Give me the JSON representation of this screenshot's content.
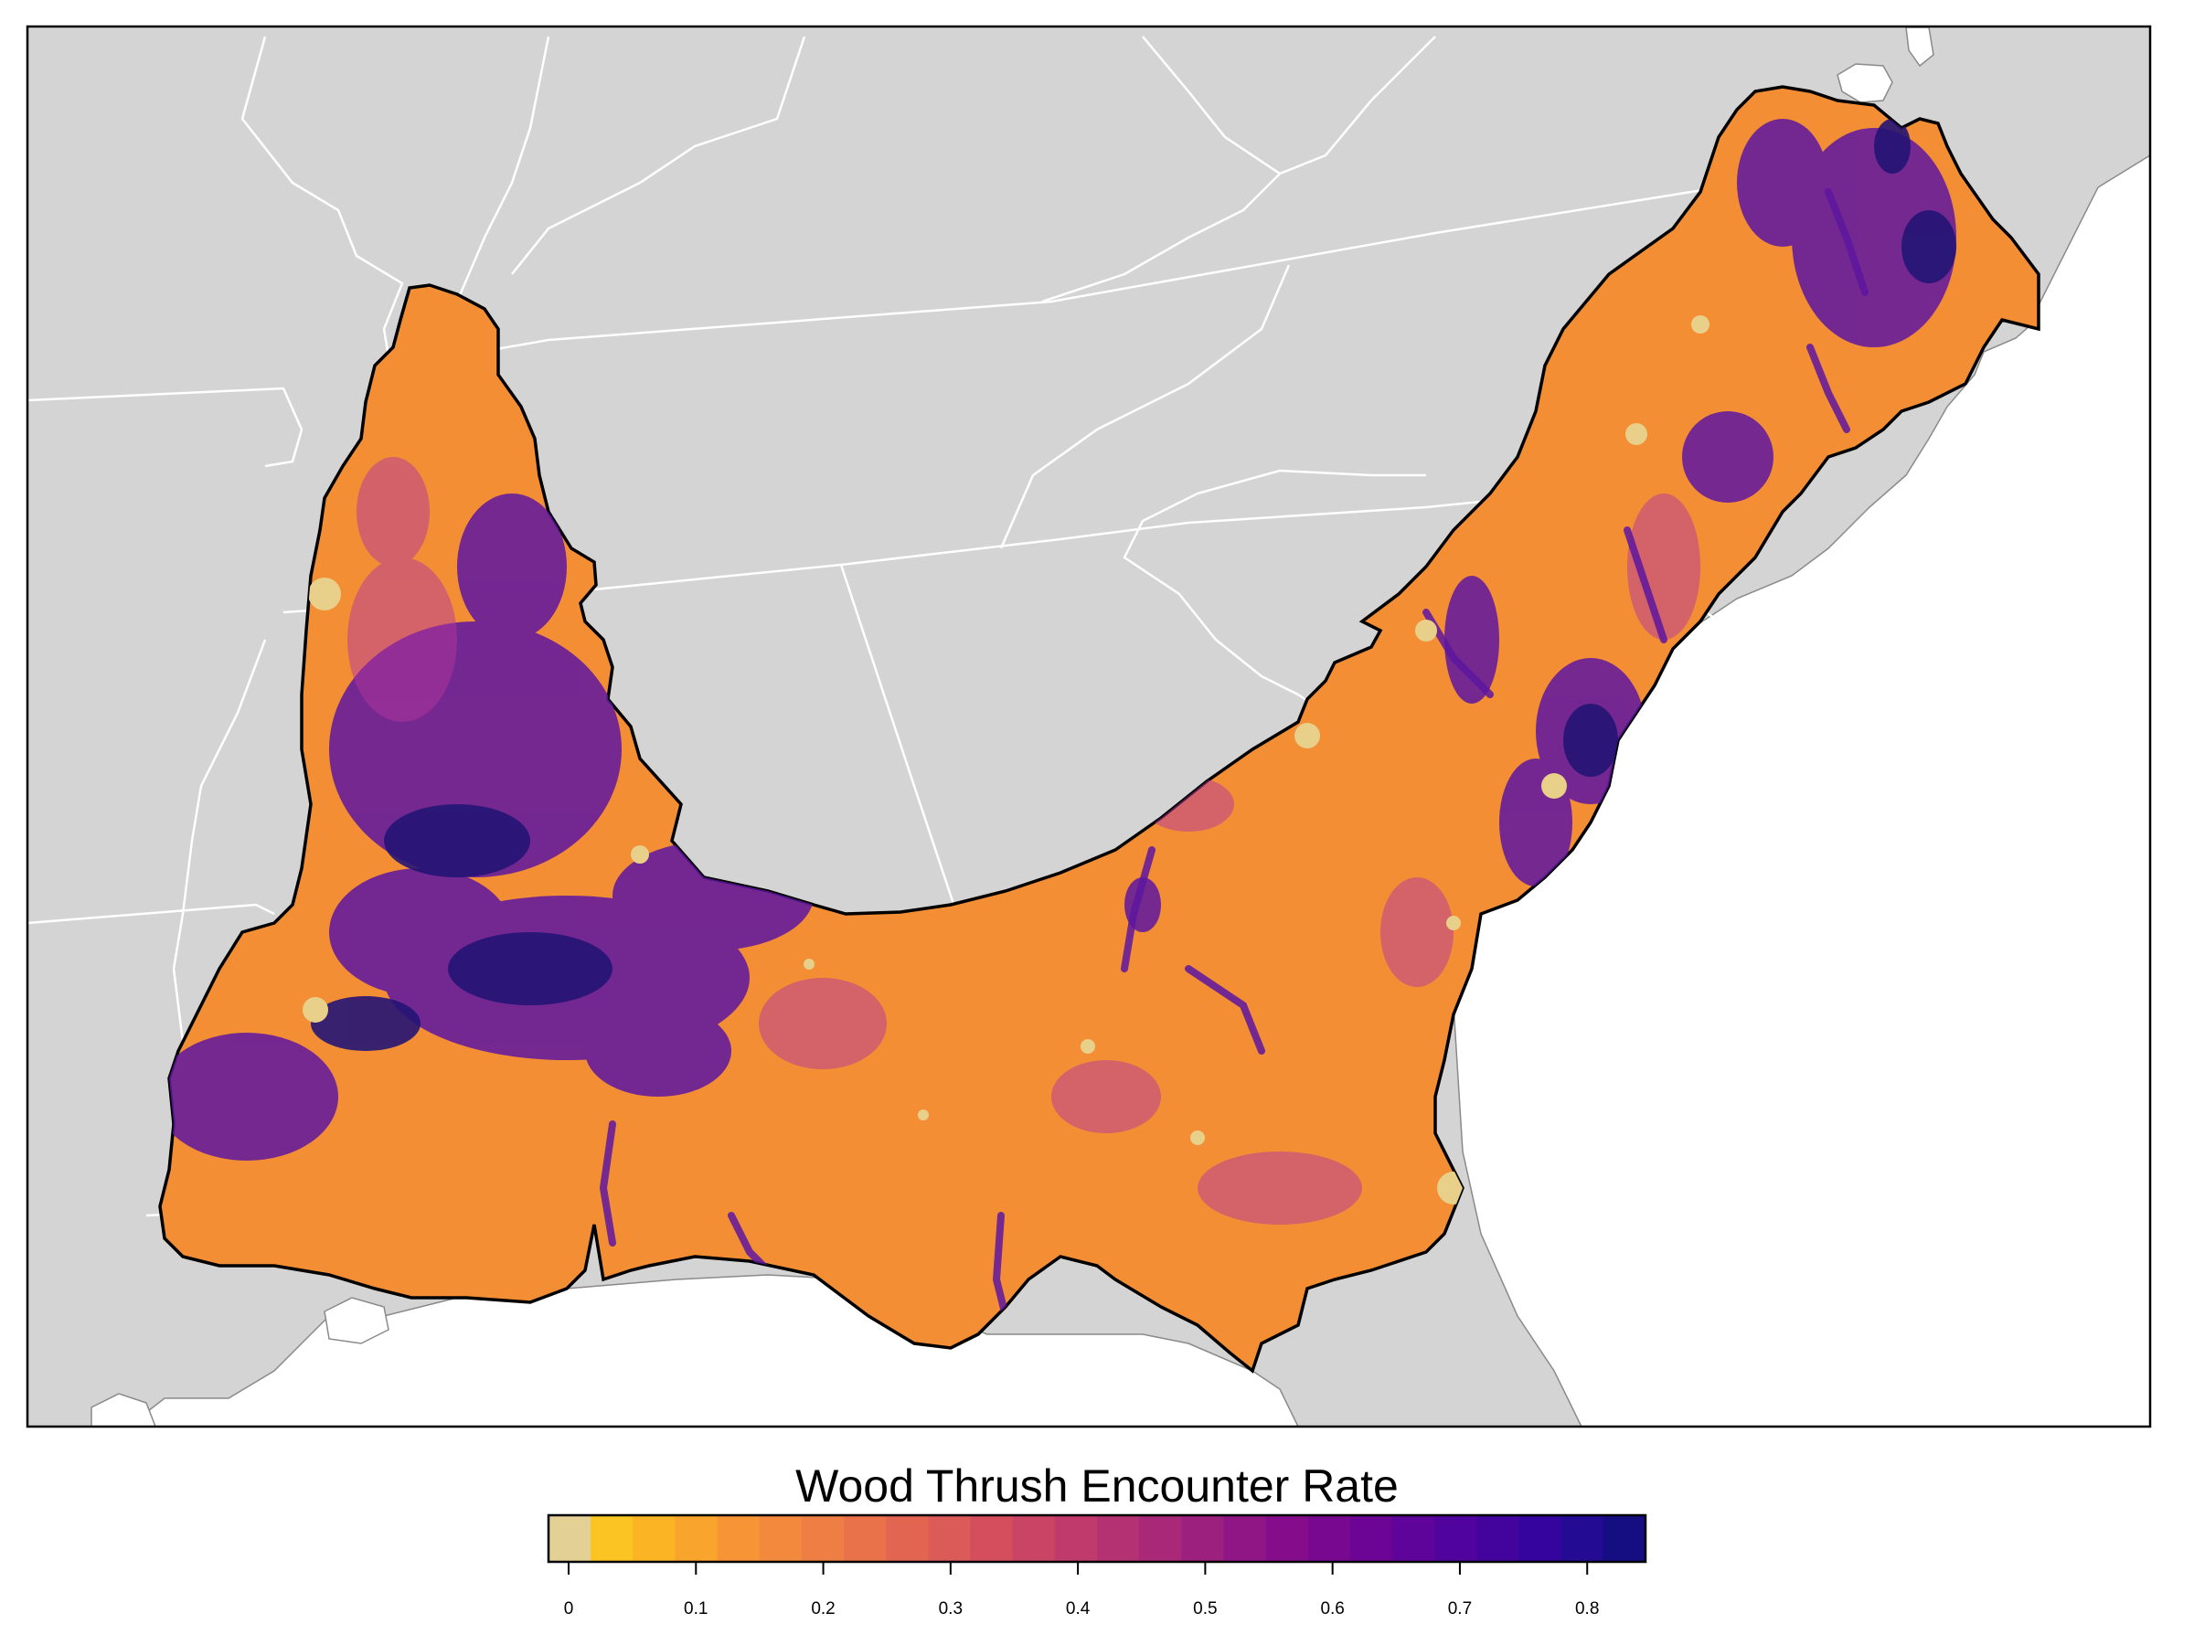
{
  "legend": {
    "title": "Wood Thrush Encounter Rate",
    "min": 0,
    "max": 0.83,
    "ticks": [
      {
        "value": 0,
        "label": "0"
      },
      {
        "value": 0.1,
        "label": "0.1"
      },
      {
        "value": 0.2,
        "label": "0.2"
      },
      {
        "value": 0.3,
        "label": "0.3"
      },
      {
        "value": 0.4,
        "label": "0.4"
      },
      {
        "value": 0.5,
        "label": "0.5"
      },
      {
        "value": 0.6,
        "label": "0.6"
      },
      {
        "value": 0.7,
        "label": "0.7"
      },
      {
        "value": 0.8,
        "label": "0.8"
      }
    ],
    "bins": [
      "#e3d095",
      "#fbc422",
      "#fbb424",
      "#f9a42d",
      "#f79435",
      "#f3893c",
      "#ee7e44",
      "#e9724b",
      "#e26552",
      "#db5b58",
      "#d44e5e",
      "#ca4565",
      "#c03b6b",
      "#b43272",
      "#a92978",
      "#9c207e",
      "#901685",
      "#850d8b",
      "#780890",
      "#6c0595",
      "#5e049a",
      "#51049d",
      "#43049e",
      "#35049e",
      "#230b94",
      "#140e82"
    ]
  },
  "colors": {
    "ocean": "#ffffff",
    "land": "#d4d4d4",
    "region_base": "#f38e35",
    "region_border": "#000000",
    "state_lines": "#ffffff",
    "high_rate": "#5d16a0",
    "very_high_rate": "#241575",
    "low_rate": "#e8cf8a",
    "mid_rate": "#b3359e"
  }
}
